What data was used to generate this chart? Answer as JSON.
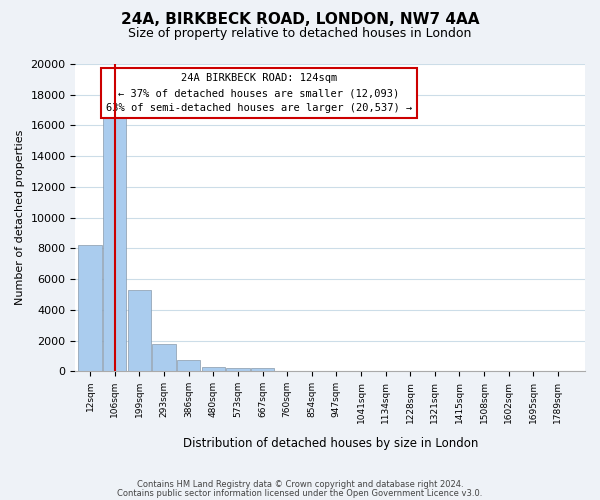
{
  "title": "24A, BIRKBECK ROAD, LONDON, NW7 4AA",
  "subtitle": "Size of property relative to detached houses in London",
  "xlabel": "Distribution of detached houses by size in London",
  "ylabel": "Number of detached properties",
  "bar_values": [
    8200,
    16500,
    5300,
    1750,
    750,
    300,
    200,
    200,
    0,
    0,
    0,
    0,
    0,
    0,
    0,
    0,
    0,
    0,
    0,
    0
  ],
  "tick_labels": [
    "12sqm",
    "106sqm",
    "199sqm",
    "293sqm",
    "386sqm",
    "480sqm",
    "573sqm",
    "667sqm",
    "760sqm",
    "854sqm",
    "947sqm",
    "1041sqm",
    "1134sqm",
    "1228sqm",
    "1321sqm",
    "1415sqm",
    "1508sqm",
    "1602sqm",
    "1695sqm",
    "1789sqm"
  ],
  "ylim": [
    0,
    20000
  ],
  "yticks": [
    0,
    2000,
    4000,
    6000,
    8000,
    10000,
    12000,
    14000,
    16000,
    18000,
    20000
  ],
  "bar_color": "#aaccee",
  "bar_edge_color": "#8899aa",
  "vline_x": 1,
  "vline_color": "#cc0000",
  "annotation_title": "24A BIRKBECK ROAD: 124sqm",
  "annotation_line1": "← 37% of detached houses are smaller (12,093)",
  "annotation_line2": "63% of semi-detached houses are larger (20,537) →",
  "footnote1": "Contains HM Land Registry data © Crown copyright and database right 2024.",
  "footnote2": "Contains public sector information licensed under the Open Government Licence v3.0.",
  "background_color": "#eef2f7",
  "plot_bg_color": "#ffffff"
}
